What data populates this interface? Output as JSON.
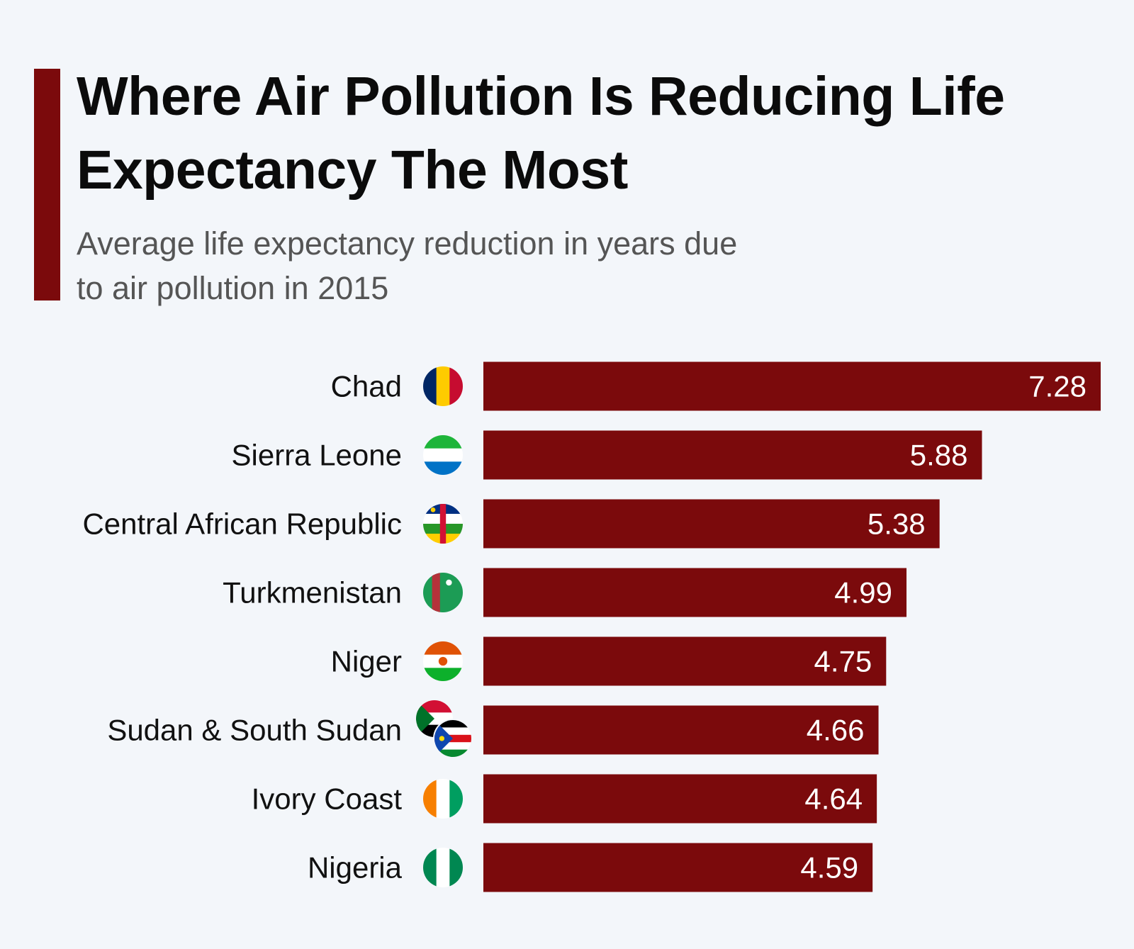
{
  "chart_data": {
    "type": "bar",
    "orientation": "horizontal",
    "title": "Where Air Pollution Is Reducing Life Expectancy The Most",
    "subtitle": "Average life expectancy reduction in years due to air pollution in 2015",
    "categories": [
      "Chad",
      "Sierra Leone",
      "Central African Republic",
      "Turkmenistan",
      "Niger",
      "Sudan & South Sudan",
      "Ivory Coast",
      "Nigeria"
    ],
    "values": [
      7.28,
      5.88,
      5.38,
      4.99,
      4.75,
      4.66,
      4.64,
      4.59
    ],
    "color": "#7b0a0c"
  }
}
